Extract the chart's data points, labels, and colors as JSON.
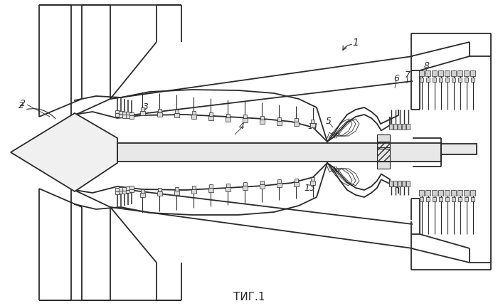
{
  "background_color": "#ffffff",
  "line_color": "#2a2a2a",
  "fig_label": "ΤИГ.1",
  "figsize": [
    7.0,
    4.31
  ],
  "dpi": 100,
  "lw_main": 1.3,
  "lw_thin": 0.8
}
